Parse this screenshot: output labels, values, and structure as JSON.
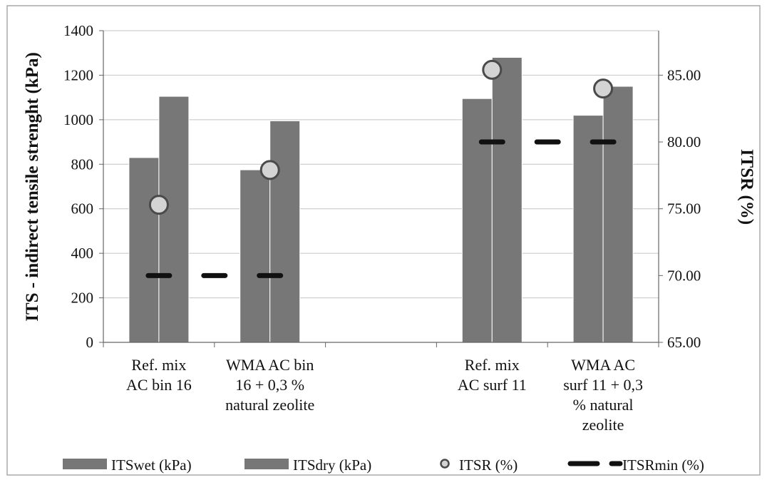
{
  "chart_data": {
    "type": "bar",
    "categories": [
      [
        "Ref. mix",
        "AC bin 16"
      ],
      [
        "WMA AC bin",
        "16 + 0,3 %",
        "natural zeolite"
      ],
      [
        "Ref. mix",
        "AC surf 11"
      ],
      [
        "WMA AC",
        "surf 11 + 0,3",
        "% natural",
        "zeolite"
      ]
    ],
    "category_slots": [
      0,
      1,
      3,
      4
    ],
    "slot_count": 5,
    "ylabel": "ITS - indirect tensile strenght (kPa)",
    "y2label": "ITSR (%)",
    "ylim": [
      0,
      1400
    ],
    "yticks": [
      0,
      200,
      400,
      600,
      800,
      1000,
      1200,
      1400
    ],
    "y2lim": [
      65,
      88.33
    ],
    "y2ticks": [
      "65.00",
      "70.00",
      "75.00",
      "80.00",
      "85.00"
    ],
    "grid": true,
    "legend_position": "bottom",
    "series": [
      {
        "name": "ITSwet (kPa)",
        "kind": "bar",
        "axis": "left",
        "color": "#777777",
        "values": [
          830,
          775,
          1095,
          1020
        ]
      },
      {
        "name": "ITSdry (kPa)",
        "kind": "bar",
        "axis": "left",
        "color": "#777777",
        "values": [
          1105,
          995,
          1280,
          1150
        ]
      },
      {
        "name": "ITSR (%)",
        "kind": "marker",
        "axis": "right",
        "color": "#d4d4d4",
        "values": [
          75.3,
          77.9,
          85.4,
          84.0
        ]
      },
      {
        "name": "ITSRmin (%)",
        "kind": "dash",
        "axis": "right",
        "color": "#111111",
        "values": [
          70,
          70,
          80,
          80
        ]
      }
    ]
  }
}
